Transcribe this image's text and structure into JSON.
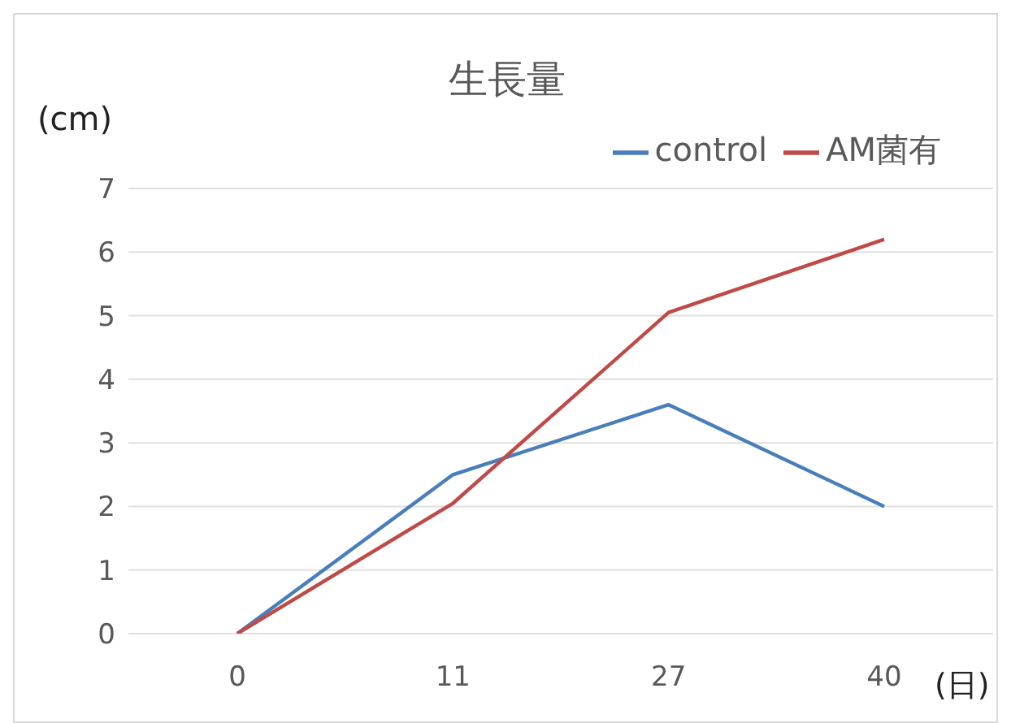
{
  "chart_data": {
    "type": "line",
    "title": "生長量",
    "xlabel": "(日)",
    "ylabel": "(cm)",
    "categories": [
      "0",
      "11",
      "27",
      "40"
    ],
    "series": [
      {
        "name": "control",
        "color": "#4a7ebb",
        "values": [
          0,
          2.5,
          3.6,
          2.0
        ]
      },
      {
        "name": "AM菌有",
        "color": "#be4b48",
        "values": [
          0,
          2.05,
          5.05,
          6.2
        ]
      }
    ],
    "ylim": [
      0,
      7
    ],
    "yticks": [
      0,
      1,
      2,
      3,
      4,
      5,
      6,
      7
    ],
    "grid": "y",
    "legend": "top right",
    "marker": "none",
    "line_style": "solid"
  }
}
